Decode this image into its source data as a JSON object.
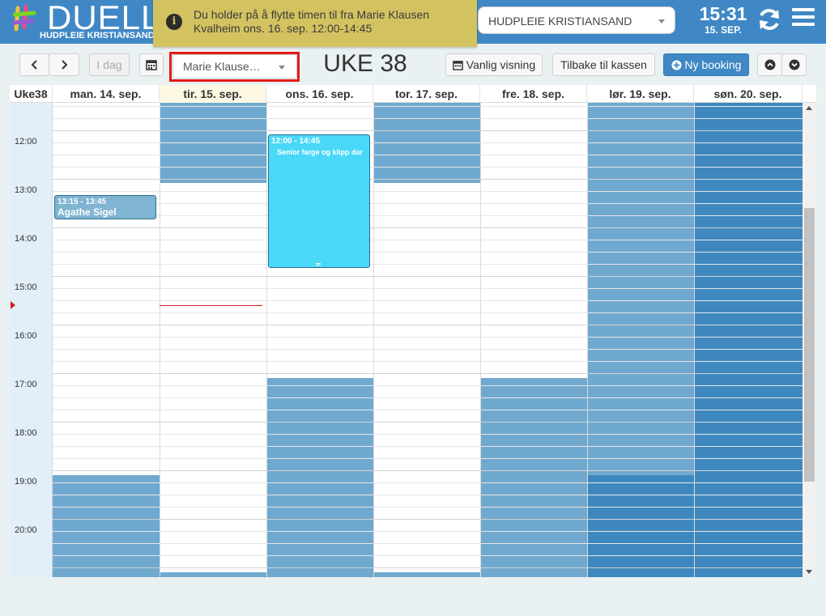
{
  "brand": {
    "name": "DUELL",
    "subtitle": "HUDPLEIE KRISTIANSAND"
  },
  "notice": {
    "icon": "info-icon",
    "line1": "Du holder på å flytte timen til fra Marie Klausen",
    "line2": "Kvalheim ons. 16. sep. 12:00-14:45"
  },
  "store": {
    "selected": "HUDPLEIE KRISTIANSAND"
  },
  "clock": {
    "time": "15:31",
    "date": "15. SEP."
  },
  "toolbar": {
    "prev_icon": "chevron-left-icon",
    "next_icon": "chevron-right-icon",
    "today_label": "I dag",
    "calendar_icon": "calendar-icon",
    "employee_selected": "Marie Klause…",
    "week_title": "UKE 38",
    "normal_view_label": "Vanlig visning",
    "back_to_register_label": "Tilbake til kassen",
    "new_booking_label": "Ny booking"
  },
  "calendar": {
    "week_label": "Uke38",
    "days": [
      {
        "label": "man. 14. sep.",
        "today": false
      },
      {
        "label": "tir. 15. sep.",
        "today": true
      },
      {
        "label": "ons. 16. sep.",
        "today": false
      },
      {
        "label": "tor. 17. sep.",
        "today": false
      },
      {
        "label": "fre. 18. sep.",
        "today": false
      },
      {
        "label": "lør. 19. sep.",
        "today": false
      },
      {
        "label": "søn. 20. sep.",
        "today": false
      }
    ],
    "hours": [
      "12:00",
      "13:00",
      "14:00",
      "15:00",
      "16:00",
      "17:00",
      "18:00",
      "19:00",
      "20:00"
    ],
    "events": [
      {
        "day": 0,
        "time": "13:15 - 13:45",
        "name": "Agathe Sigel",
        "desc": ""
      },
      {
        "day": 2,
        "time": "12:00 - 14:45",
        "name": "",
        "desc": "Senior farge og klipp dar"
      }
    ],
    "colors": {
      "closed": "#70a9cf",
      "closed_dark": "#3f88bf",
      "moving_event": "#4ad8f8",
      "booking_event": "#7fb4d3",
      "now_line": "#d02020"
    }
  }
}
